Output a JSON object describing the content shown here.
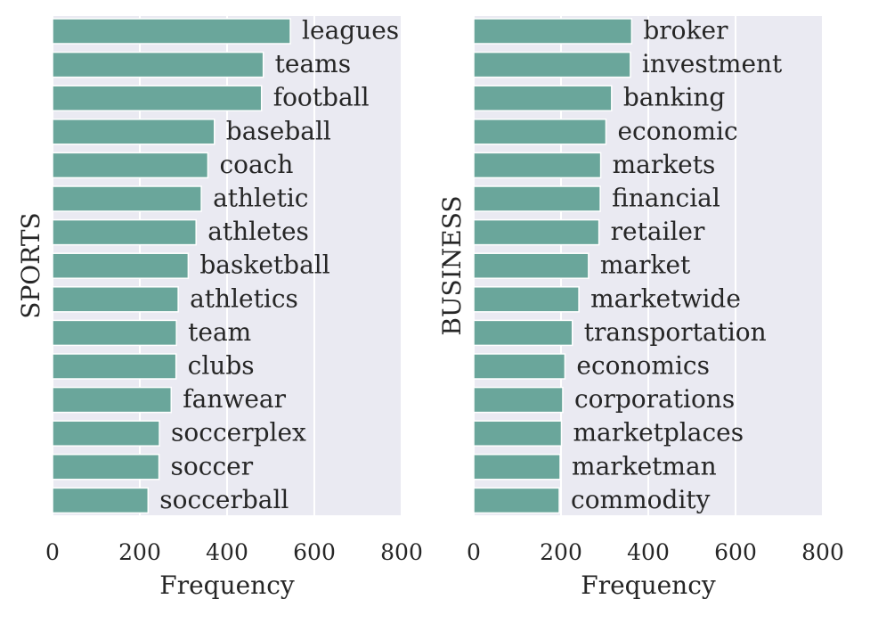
{
  "chart_data": [
    {
      "type": "bar",
      "orientation": "horizontal",
      "ylabel": "SPORTS",
      "xlabel": "Frequency",
      "xlim": [
        0,
        800
      ],
      "xticks": [
        0,
        200,
        400,
        600,
        800
      ],
      "grid": true,
      "bar_color": "#6aa69b",
      "categories": [
        "leagues",
        "teams",
        "football",
        "baseball",
        "coach",
        "athletic",
        "athletes",
        "basketball",
        "athletics",
        "team",
        "clubs",
        "fanwear",
        "soccerplex",
        "soccer",
        "soccerball"
      ],
      "values": [
        545,
        483,
        479,
        371,
        356,
        341,
        329,
        311,
        288,
        284,
        283,
        272,
        245,
        244,
        219
      ]
    },
    {
      "type": "bar",
      "orientation": "horizontal",
      "ylabel": "BUSINESS",
      "xlabel": "Frequency",
      "xlim": [
        0,
        800
      ],
      "xticks": [
        0,
        200,
        400,
        600,
        800
      ],
      "grid": true,
      "bar_color": "#6aa69b",
      "categories": [
        "broker",
        "investment",
        "banking",
        "economic",
        "markets",
        "financial",
        "retailer",
        "market",
        "marketwide",
        "transportation",
        "economics",
        "corporations",
        "marketplaces",
        "marketman",
        "commodity"
      ],
      "values": [
        362,
        359,
        316,
        303,
        291,
        290,
        287,
        263,
        241,
        226,
        209,
        204,
        201,
        198,
        196
      ]
    }
  ],
  "colors": {
    "panel_background": "#eaeaf2",
    "grid": "#ffffff",
    "text": "#262626"
  }
}
